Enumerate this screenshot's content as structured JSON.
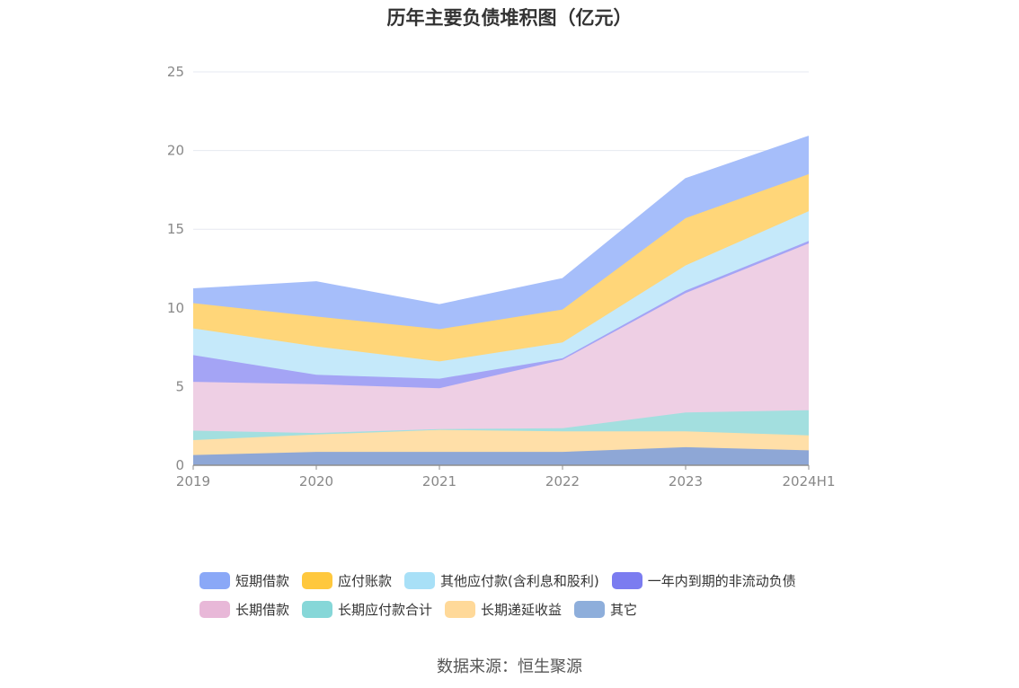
{
  "chart_data": {
    "type": "area",
    "stacked": true,
    "title": "历年主要负债堆积图（亿元）",
    "categories": [
      "2019",
      "2020",
      "2021",
      "2022",
      "2023",
      "2024H1"
    ],
    "ylim": [
      0,
      25
    ],
    "yticks": [
      0,
      5,
      10,
      15,
      20,
      25
    ],
    "grid": true,
    "legend_position": "bottom",
    "series": [
      {
        "name": "其它",
        "color": "#8EA7D6",
        "values": [
          0.65,
          0.85,
          0.85,
          0.85,
          1.15,
          0.95
        ]
      },
      {
        "name": "长期递延收益",
        "color": "#FFDFA8",
        "values": [
          0.95,
          1.1,
          1.4,
          1.3,
          1.0,
          0.95
        ]
      },
      {
        "name": "长期应付款合计",
        "color": "#A3DFDF",
        "values": [
          0.6,
          0.1,
          0.05,
          0.2,
          1.2,
          1.6
        ]
      },
      {
        "name": "长期借款",
        "color": "#EECFE4",
        "values": [
          3.1,
          3.1,
          2.6,
          4.35,
          7.6,
          10.6
        ]
      },
      {
        "name": "一年内到期的非流动负债",
        "color": "#A4A4F5",
        "values": [
          1.7,
          0.6,
          0.6,
          0.1,
          0.15,
          0.15
        ]
      },
      {
        "name": "其他应付款(含利息和股利)",
        "color": "#C5E9FA",
        "values": [
          1.7,
          1.8,
          1.1,
          1.0,
          1.6,
          1.9
        ]
      },
      {
        "name": "应付账款",
        "color": "#FFD679",
        "values": [
          1.6,
          1.9,
          2.05,
          2.1,
          3.0,
          2.35
        ]
      },
      {
        "name": "短期借款",
        "color": "#A6BEFA",
        "values": [
          0.9,
          2.2,
          1.55,
          1.95,
          2.5,
          2.4
        ]
      }
    ]
  },
  "legend": {
    "rows": [
      [
        {
          "label": "短期借款",
          "color": "#8AA8F7"
        },
        {
          "label": "应付账款",
          "color": "#FFC83D"
        },
        {
          "label": "其他应付款(含利息和股利)",
          "color": "#A8E0F7"
        },
        {
          "label": "一年内到期的非流动负债",
          "color": "#7B7CF0"
        }
      ],
      [
        {
          "label": "长期借款",
          "color": "#E8B8D8"
        },
        {
          "label": "长期应付款合计",
          "color": "#86D7D8"
        },
        {
          "label": "长期递延收益",
          "color": "#FFD999"
        },
        {
          "label": "其它",
          "color": "#8EAEDB"
        }
      ]
    ]
  },
  "source": "数据来源：恒生聚源"
}
